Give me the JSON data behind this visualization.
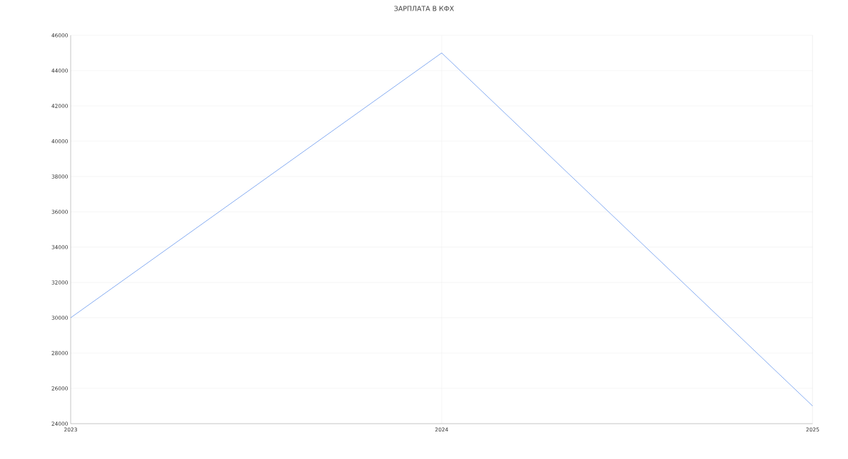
{
  "chart_data": {
    "type": "line",
    "title": "ЗАРПЛАТА В КФХ",
    "x": [
      2023,
      2024,
      2025
    ],
    "series": [
      {
        "color": "#6495ed",
        "values": [
          30000,
          45000,
          25000
        ]
      }
    ],
    "xlim": [
      2023,
      2025
    ],
    "xticks": [
      2023,
      2024,
      2025
    ],
    "ylim": [
      24000,
      46000
    ],
    "yticks": [
      24000,
      26000,
      28000,
      30000,
      32000,
      34000,
      36000,
      38000,
      40000,
      42000,
      44000,
      46000
    ],
    "grid": true,
    "marker": "none",
    "line_style": "solid"
  }
}
